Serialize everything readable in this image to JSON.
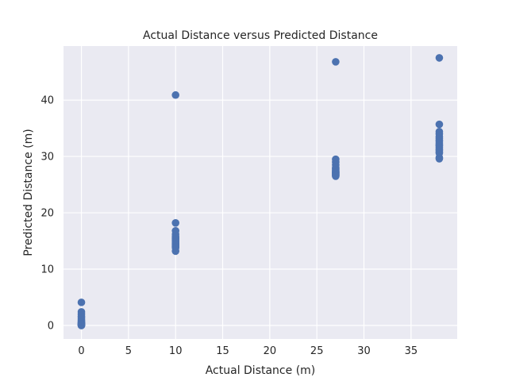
{
  "chart_data": {
    "type": "scatter",
    "title": "Actual Distance versus Predicted Distance",
    "xlabel": "Actual Distance (m)",
    "ylabel": "Predicted Distance (m)",
    "xlim": [
      -1.9,
      39.9
    ],
    "ylim": [
      -2.4,
      49.6
    ],
    "xticks": [
      0,
      5,
      10,
      15,
      20,
      25,
      30,
      35
    ],
    "yticks": [
      0,
      10,
      20,
      30,
      40
    ],
    "grid": true,
    "legend": "none",
    "colors": {
      "background": "#EAEAF2",
      "grid": "#FFFFFF",
      "marker": "#4C72B0"
    },
    "series": [
      {
        "x": [
          0,
          0,
          0,
          0,
          0,
          0,
          0,
          0,
          0,
          0,
          0,
          0,
          0,
          0,
          0,
          0,
          0,
          0,
          10,
          10,
          10,
          10,
          10,
          10,
          10,
          10,
          10,
          10,
          10,
          10,
          10,
          10,
          10,
          10,
          10,
          10,
          27,
          27,
          27,
          27,
          27,
          27,
          27,
          27,
          27,
          27,
          27,
          27,
          27,
          27,
          27,
          27,
          27,
          38,
          38,
          38,
          38,
          38,
          38,
          38,
          38,
          38,
          38,
          38,
          38,
          38,
          38,
          38,
          38,
          38,
          38
        ],
        "y": [
          4.1,
          2.4,
          2.0,
          1.6,
          1.3,
          1.0,
          0.8,
          0.6,
          0.5,
          0.4,
          0.3,
          0.25,
          0.2,
          0.15,
          0.1,
          0.05,
          0.0,
          0.0,
          40.9,
          18.2,
          16.8,
          16.2,
          15.8,
          15.6,
          15.4,
          15.2,
          15.0,
          14.8,
          14.6,
          14.4,
          14.3,
          14.2,
          14.0,
          13.9,
          13.8,
          13.2,
          46.8,
          29.5,
          29.0,
          28.5,
          28.0,
          27.8,
          27.6,
          27.4,
          27.3,
          27.2,
          27.1,
          27.0,
          26.9,
          26.8,
          26.7,
          26.6,
          26.5,
          47.5,
          35.7,
          34.4,
          34.0,
          33.5,
          33.2,
          32.9,
          32.7,
          32.4,
          32.1,
          31.9,
          31.6,
          31.3,
          31.1,
          30.8,
          30.6,
          29.8,
          29.6
        ]
      }
    ]
  }
}
